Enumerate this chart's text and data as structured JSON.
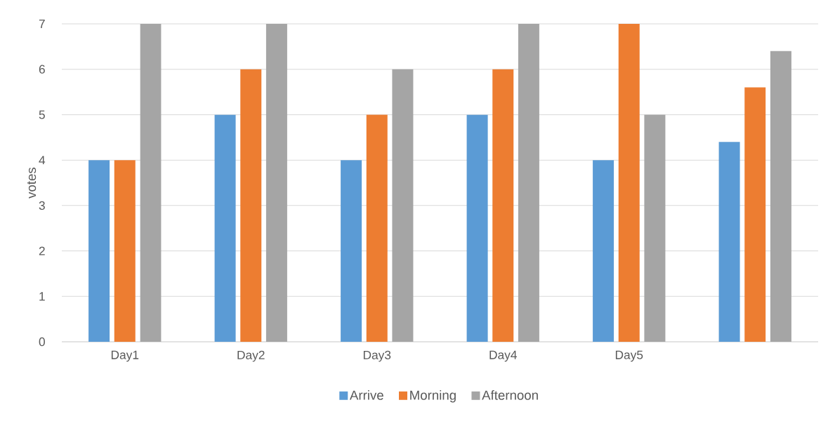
{
  "chart_data": {
    "type": "bar",
    "categories": [
      "Day1",
      "Day2",
      "Day3",
      "Day4",
      "Day5",
      null
    ],
    "ylabel": "votes",
    "series": [
      {
        "name": "Arrive",
        "color": "#5b9bd5",
        "values": [
          4,
          5,
          4,
          5,
          4,
          4.4
        ]
      },
      {
        "name": "Morning",
        "color": "#ed7d31",
        "values": [
          4,
          6,
          5,
          6,
          7,
          5.6
        ]
      },
      {
        "name": "Afternoon",
        "color": "#a5a5a5",
        "values": [
          7,
          7,
          6,
          7,
          5,
          6.4
        ]
      }
    ],
    "ylim": [
      0,
      7
    ],
    "yticks": [
      0,
      1,
      2,
      3,
      4,
      5,
      6,
      7
    ],
    "grid": "y",
    "legend": "bottom"
  }
}
